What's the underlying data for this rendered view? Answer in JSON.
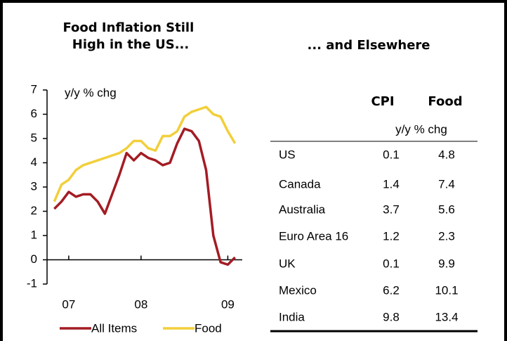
{
  "chart_data": {
    "type": "line",
    "title": "Food Inflation Still High in the US...",
    "y_label": "y/y % chg",
    "x": [
      1,
      2,
      3,
      4,
      5,
      6,
      7,
      8,
      9,
      10,
      11,
      12,
      13,
      14,
      15,
      16,
      17,
      18,
      19,
      20,
      21,
      22,
      23,
      24,
      25,
      26
    ],
    "xlim": [
      0,
      27
    ],
    "xticks": [
      {
        "value": 3,
        "label": "07"
      },
      {
        "value": 13,
        "label": "08"
      },
      {
        "value": 25,
        "label": "09"
      }
    ],
    "ylim": [
      -1,
      7
    ],
    "yticks": [
      -1,
      0,
      1,
      2,
      3,
      4,
      5,
      6,
      7
    ],
    "series": [
      {
        "name": "All Items",
        "color": "#a31c24",
        "values": [
          2.1,
          2.4,
          2.8,
          2.6,
          2.7,
          2.7,
          2.4,
          1.9,
          2.7,
          3.5,
          4.4,
          4.1,
          4.4,
          4.2,
          4.1,
          3.9,
          4.0,
          4.8,
          5.4,
          5.3,
          4.9,
          3.7,
          1.0,
          -0.1,
          -0.2,
          0.1
        ]
      },
      {
        "name": "Food",
        "color": "#f2cf3a",
        "values": [
          2.4,
          3.1,
          3.3,
          3.7,
          3.9,
          4.0,
          4.1,
          4.2,
          4.3,
          4.4,
          4.6,
          4.9,
          4.9,
          4.6,
          4.5,
          5.1,
          5.1,
          5.3,
          5.9,
          6.1,
          6.2,
          6.3,
          6.0,
          5.9,
          5.3,
          4.8
        ]
      }
    ]
  },
  "table": {
    "title": "... and Elsewhere",
    "headers": [
      "CPI",
      "Food"
    ],
    "subheader": "y/y % chg",
    "rows": [
      [
        "US",
        0.1,
        4.8
      ],
      [
        "Canada",
        1.4,
        7.4
      ],
      [
        "Australia",
        3.7,
        5.6
      ],
      [
        "Euro Area 16",
        1.2,
        2.3
      ],
      [
        "UK",
        0.1,
        9.9
      ],
      [
        "Mexico",
        6.2,
        10.1
      ],
      [
        "India",
        9.8,
        13.4
      ]
    ]
  }
}
